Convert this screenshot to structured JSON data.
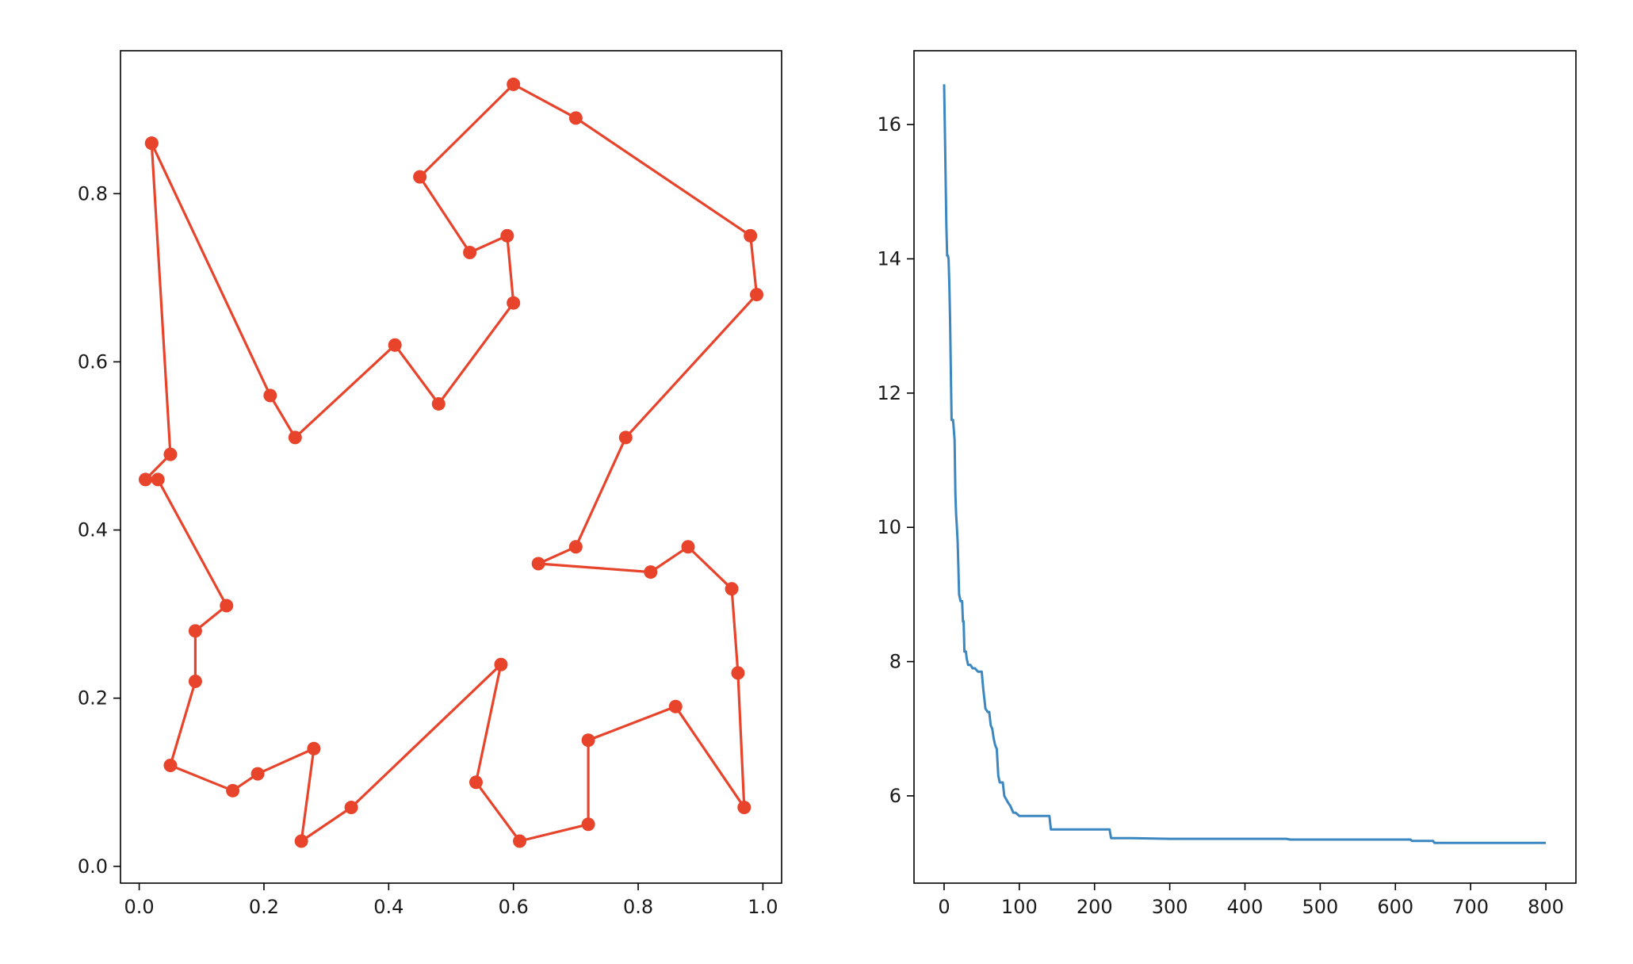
{
  "chart_data": [
    {
      "type": "line",
      "title": "",
      "xlabel": "",
      "ylabel": "",
      "xlim": [
        -0.03,
        1.03
      ],
      "ylim": [
        -0.02,
        0.97
      ],
      "xticks": [
        "0.0",
        "0.2",
        "0.4",
        "0.6",
        "0.8",
        "1.0"
      ],
      "yticks": [
        "0.0",
        "0.2",
        "0.4",
        "0.6",
        "0.8"
      ],
      "grid": false,
      "line_color": "#e8432b",
      "marker": "circle",
      "series": [
        {
          "x": [
            0.02,
            0.05,
            0.01,
            0.03,
            0.14,
            0.09,
            0.09,
            0.05,
            0.15,
            0.19,
            0.28,
            0.26,
            0.34,
            0.58,
            0.54,
            0.61,
            0.72,
            0.72,
            0.86,
            0.97,
            0.96,
            0.95,
            0.88,
            0.82,
            0.64,
            0.7,
            0.78,
            0.99,
            0.98,
            0.7,
            0.6,
            0.45,
            0.53,
            0.59,
            0.6,
            0.48,
            0.41,
            0.25,
            0.21,
            0.02
          ],
          "y": [
            0.86,
            0.49,
            0.46,
            0.46,
            0.31,
            0.28,
            0.22,
            0.12,
            0.09,
            0.11,
            0.14,
            0.03,
            0.07,
            0.24,
            0.1,
            0.03,
            0.05,
            0.15,
            0.19,
            0.07,
            0.23,
            0.33,
            0.38,
            0.35,
            0.36,
            0.38,
            0.51,
            0.68,
            0.75,
            0.89,
            0.93,
            0.82,
            0.73,
            0.75,
            0.67,
            0.55,
            0.62,
            0.51,
            0.56,
            0.86
          ]
        }
      ]
    },
    {
      "type": "line",
      "title": "",
      "xlabel": "",
      "ylabel": "",
      "xlim": [
        -40,
        840
      ],
      "ylim": [
        4.7,
        17.1
      ],
      "xticks": [
        "0",
        "100",
        "200",
        "300",
        "400",
        "500",
        "600",
        "700",
        "800"
      ],
      "yticks": [
        "6",
        "8",
        "10",
        "12",
        "14",
        "16"
      ],
      "grid": false,
      "line_color": "#3d87c0",
      "series": [
        {
          "x": [
            0,
            2,
            3,
            4,
            5,
            6,
            7,
            8,
            9,
            10,
            11,
            12,
            14,
            15,
            16,
            17,
            18,
            19,
            20,
            22,
            24,
            25,
            26,
            27,
            28,
            29,
            30,
            32,
            33,
            35,
            38,
            41,
            45,
            50,
            52,
            55,
            58,
            60,
            62,
            64,
            66,
            68,
            70,
            72,
            74,
            76,
            78,
            80,
            85,
            88,
            90,
            92,
            95,
            100,
            105,
            110,
            120,
            140,
            142,
            150,
            160,
            180,
            200,
            220,
            222,
            250,
            300,
            400,
            455,
            460,
            500,
            550,
            600,
            620,
            622,
            650,
            652,
            700,
            750,
            800
          ],
          "y": [
            16.6,
            15.2,
            14.5,
            14.05,
            14.05,
            14.0,
            13.6,
            13.1,
            12.3,
            11.6,
            11.6,
            11.6,
            11.3,
            10.5,
            10.2,
            10.0,
            9.8,
            9.4,
            9.0,
            8.9,
            8.9,
            8.6,
            8.6,
            8.15,
            8.15,
            8.15,
            8.05,
            7.95,
            7.95,
            7.95,
            7.9,
            7.9,
            7.85,
            7.85,
            7.6,
            7.3,
            7.25,
            7.25,
            7.05,
            7.0,
            6.85,
            6.75,
            6.7,
            6.3,
            6.2,
            6.2,
            6.2,
            6.0,
            5.9,
            5.85,
            5.8,
            5.75,
            5.75,
            5.7,
            5.7,
            5.7,
            5.7,
            5.7,
            5.5,
            5.5,
            5.5,
            5.5,
            5.5,
            5.5,
            5.37,
            5.37,
            5.36,
            5.36,
            5.36,
            5.35,
            5.35,
            5.35,
            5.35,
            5.35,
            5.33,
            5.33,
            5.3,
            5.3,
            5.3,
            5.3
          ]
        }
      ]
    }
  ]
}
